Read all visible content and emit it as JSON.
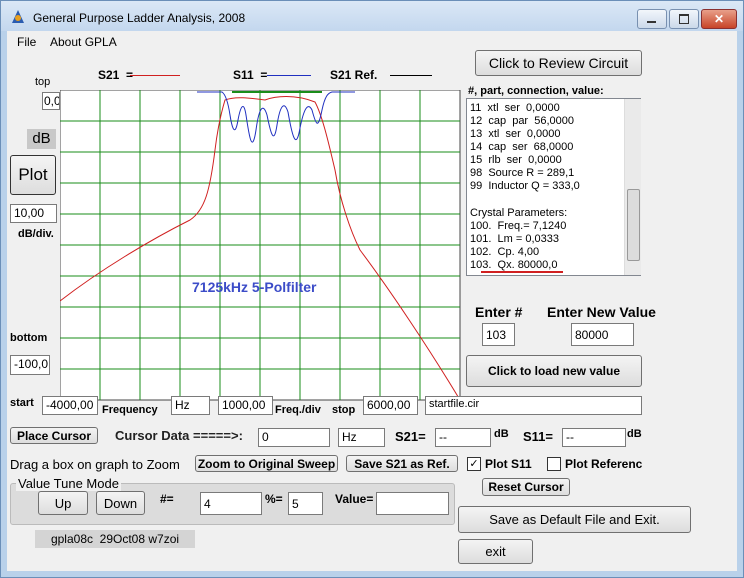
{
  "window": {
    "title": "General Purpose Ladder Analysis, 2008"
  },
  "menu": [
    "File",
    "About GPLA"
  ],
  "legend": {
    "s21": "S21  =",
    "s11": "S11  =",
    "s21_ref": "S21 Ref."
  },
  "plot": {
    "annotation": "7125kHz 5-Polfilter"
  },
  "left_panel": {
    "top_label": "top",
    "top_value": "0,0",
    "unit": "dB",
    "plot_button": "Plot",
    "db_per_div": "10,00",
    "db_per_div_label": "dB/div.",
    "bottom_label": "bottom",
    "bottom_value": "-100,0"
  },
  "sweep": {
    "start_label": "start",
    "start": "-4000,00",
    "frequency_label": "Frequency",
    "unit": "Hz",
    "freq_per_div": "1000,00",
    "freq_per_div_label": "Freq./div",
    "stop_label": "stop",
    "stop": "6000,00",
    "file": "startfile.cir"
  },
  "circuit": {
    "review_button": "Click to Review Circuit",
    "list_header": "#, part, connection, value:",
    "parts": [
      "11  xtl  ser  0,0000",
      "12  cap  par  56,0000",
      "13  xtl  ser  0,0000",
      "14  cap  ser  68,0000",
      "15  rlb  ser  0,0000",
      "98  Source R = 289,1",
      "99  Inductor Q = 333,0"
    ],
    "crystal_header": "Crystal Parameters:",
    "crystal": [
      "100.  Freq.= 7,1240",
      "101.  Lm = 0,0333",
      "102.  Cp. 4,00",
      "103.  Qx. 80000,0"
    ]
  },
  "entry": {
    "number_label": "Enter #",
    "value_label": "Enter New Value",
    "number": "103",
    "value": "80000",
    "load_button": "Click to load new value"
  },
  "cursor": {
    "place_button": "Place Cursor",
    "data_label": "Cursor Data =====>:",
    "frequency": "0",
    "unit": "Hz",
    "s21_label": "S21=",
    "s21": "--",
    "s21_unit": "dB",
    "s11_label": "S11=",
    "s11": "--",
    "s11_unit": "dB"
  },
  "controls": {
    "zoom_hint": "Drag a box on graph to Zoom",
    "zoom_button": "Zoom to Original Sweep",
    "save_ref_button": "Save S21 as Ref.",
    "plot_s11": "Plot S11",
    "plot_reference": "Plot Referenc",
    "reset_cursor": "Reset Cursor"
  },
  "tune": {
    "group": "Value Tune Mode",
    "up": "Up",
    "down": "Down",
    "step_label": "#=",
    "step": "4",
    "percent_label": "%=",
    "percent": "5",
    "value_label": "Value="
  },
  "footer": {
    "version": "gpla08c  29Oct08 w7zoi",
    "save_exit": "Save as Default File and Exit.",
    "exit": "exit"
  }
}
